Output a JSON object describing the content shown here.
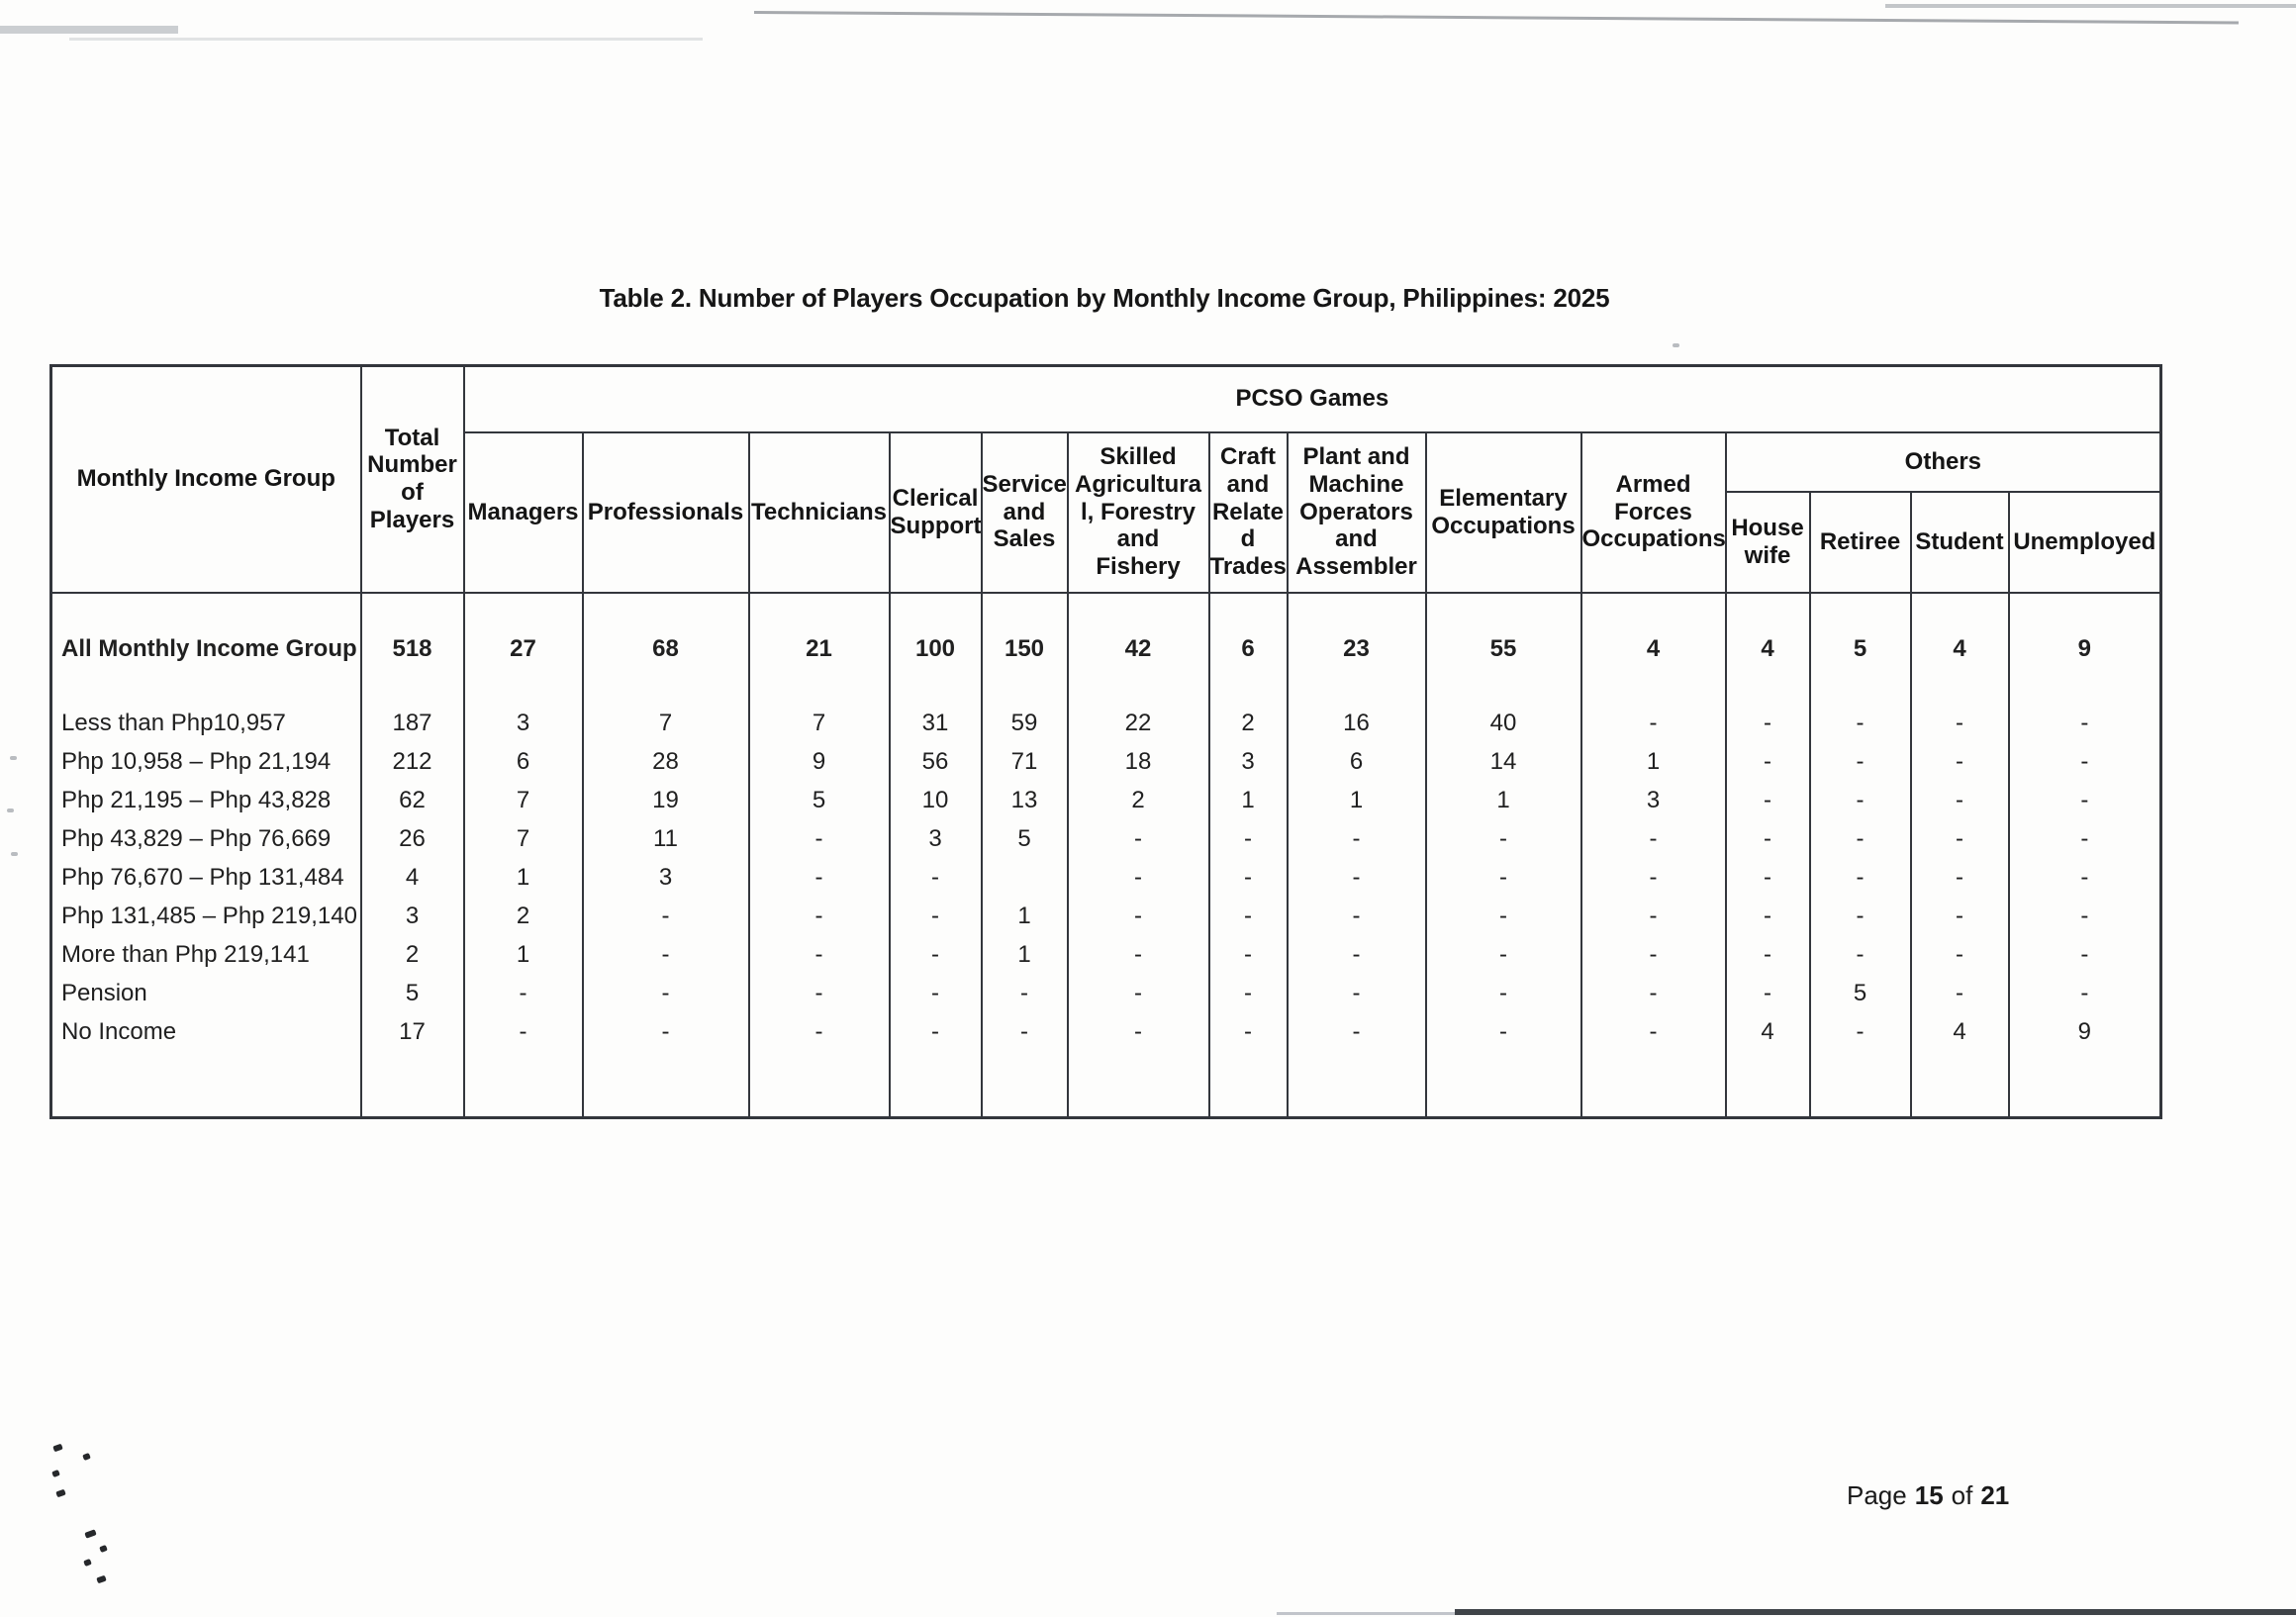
{
  "page": {
    "title": "Table 2. Number of Players Occupation by Monthly Income Group, Philippines: 2025"
  },
  "footer": {
    "word_page": "Page",
    "page_number": "15",
    "word_of": "of",
    "total_pages": "21"
  },
  "colors": {
    "grid_line": "#33363c",
    "ink": "#1c1c1c",
    "paper": "#fdfdfc"
  },
  "table": {
    "corner_header": "Monthly Income Group",
    "total_header": "Total\nNumber\nof\nPlayers",
    "group_header": "PCSO Games",
    "others_header": "Others",
    "occupation_headers": [
      "Managers",
      "Professionals",
      "Technicians",
      "Clerical\nSupport",
      "Service\nand\nSales",
      "Skilled\nAgricultura\nl, Forestry\nand\nFishery",
      "Craft\nand\nRelate\nd\nTrades",
      "Plant and\nMachine\nOperators\nand\nAssembler",
      "Elementary\nOccupations",
      "Armed\nForces\nOccupations"
    ],
    "others_headers": [
      "House\nwife",
      "Retiree",
      "Student",
      "Unemployed"
    ],
    "rows": [
      {
        "label": "All Monthly Income Group",
        "bold": true,
        "values": [
          "518",
          "27",
          "68",
          "21",
          "100",
          "150",
          "42",
          "6",
          "23",
          "55",
          "4",
          "4",
          "5",
          "4",
          "9"
        ]
      },
      {
        "label": "Less than Php10,957",
        "bold": false,
        "values": [
          "187",
          "3",
          "7",
          "7",
          "31",
          "59",
          "22",
          "2",
          "16",
          "40",
          "-",
          "-",
          "-",
          "-",
          "-"
        ]
      },
      {
        "label": "Php 10,958 – Php 21,194",
        "bold": false,
        "values": [
          "212",
          "6",
          "28",
          "9",
          "56",
          "71",
          "18",
          "3",
          "6",
          "14",
          "1",
          "-",
          "-",
          "-",
          "-"
        ]
      },
      {
        "label": "Php 21,195 – Php 43,828",
        "bold": false,
        "values": [
          "62",
          "7",
          "19",
          "5",
          "10",
          "13",
          "2",
          "1",
          "1",
          "1",
          "3",
          "-",
          "-",
          "-",
          "-"
        ]
      },
      {
        "label": "Php 43,829 – Php 76,669",
        "bold": false,
        "values": [
          "26",
          "7",
          "11",
          "-",
          "3",
          "5",
          "-",
          "-",
          "-",
          "-",
          "-",
          "-",
          "-",
          "-",
          "-"
        ]
      },
      {
        "label": "Php 76,670 – Php 131,484",
        "bold": false,
        "values": [
          "4",
          "1",
          "3",
          "-",
          "-",
          "",
          "-",
          "-",
          "-",
          "-",
          "-",
          "-",
          "-",
          "-",
          "-"
        ]
      },
      {
        "label": "Php 131,485 – Php 219,140",
        "bold": false,
        "values": [
          "3",
          "2",
          "-",
          "-",
          "-",
          "1",
          "-",
          "-",
          "-",
          "-",
          "-",
          "-",
          "-",
          "-",
          "-"
        ]
      },
      {
        "label": "More than Php 219,141",
        "bold": false,
        "values": [
          "2",
          "1",
          "-",
          "-",
          "-",
          "1",
          "-",
          "-",
          "-",
          "-",
          "-",
          "-",
          "-",
          "-",
          "-"
        ]
      },
      {
        "label": "Pension",
        "bold": false,
        "values": [
          "5",
          "-",
          "-",
          "-",
          "-",
          "-",
          "-",
          "-",
          "-",
          "-",
          "-",
          "-",
          "5",
          "-",
          "-"
        ]
      },
      {
        "label": "No Income",
        "bold": false,
        "values": [
          "17",
          "-",
          "-",
          "-",
          "-",
          "-",
          "-",
          "-",
          "-",
          "-",
          "-",
          "4",
          "-",
          "4",
          "9"
        ]
      }
    ]
  }
}
